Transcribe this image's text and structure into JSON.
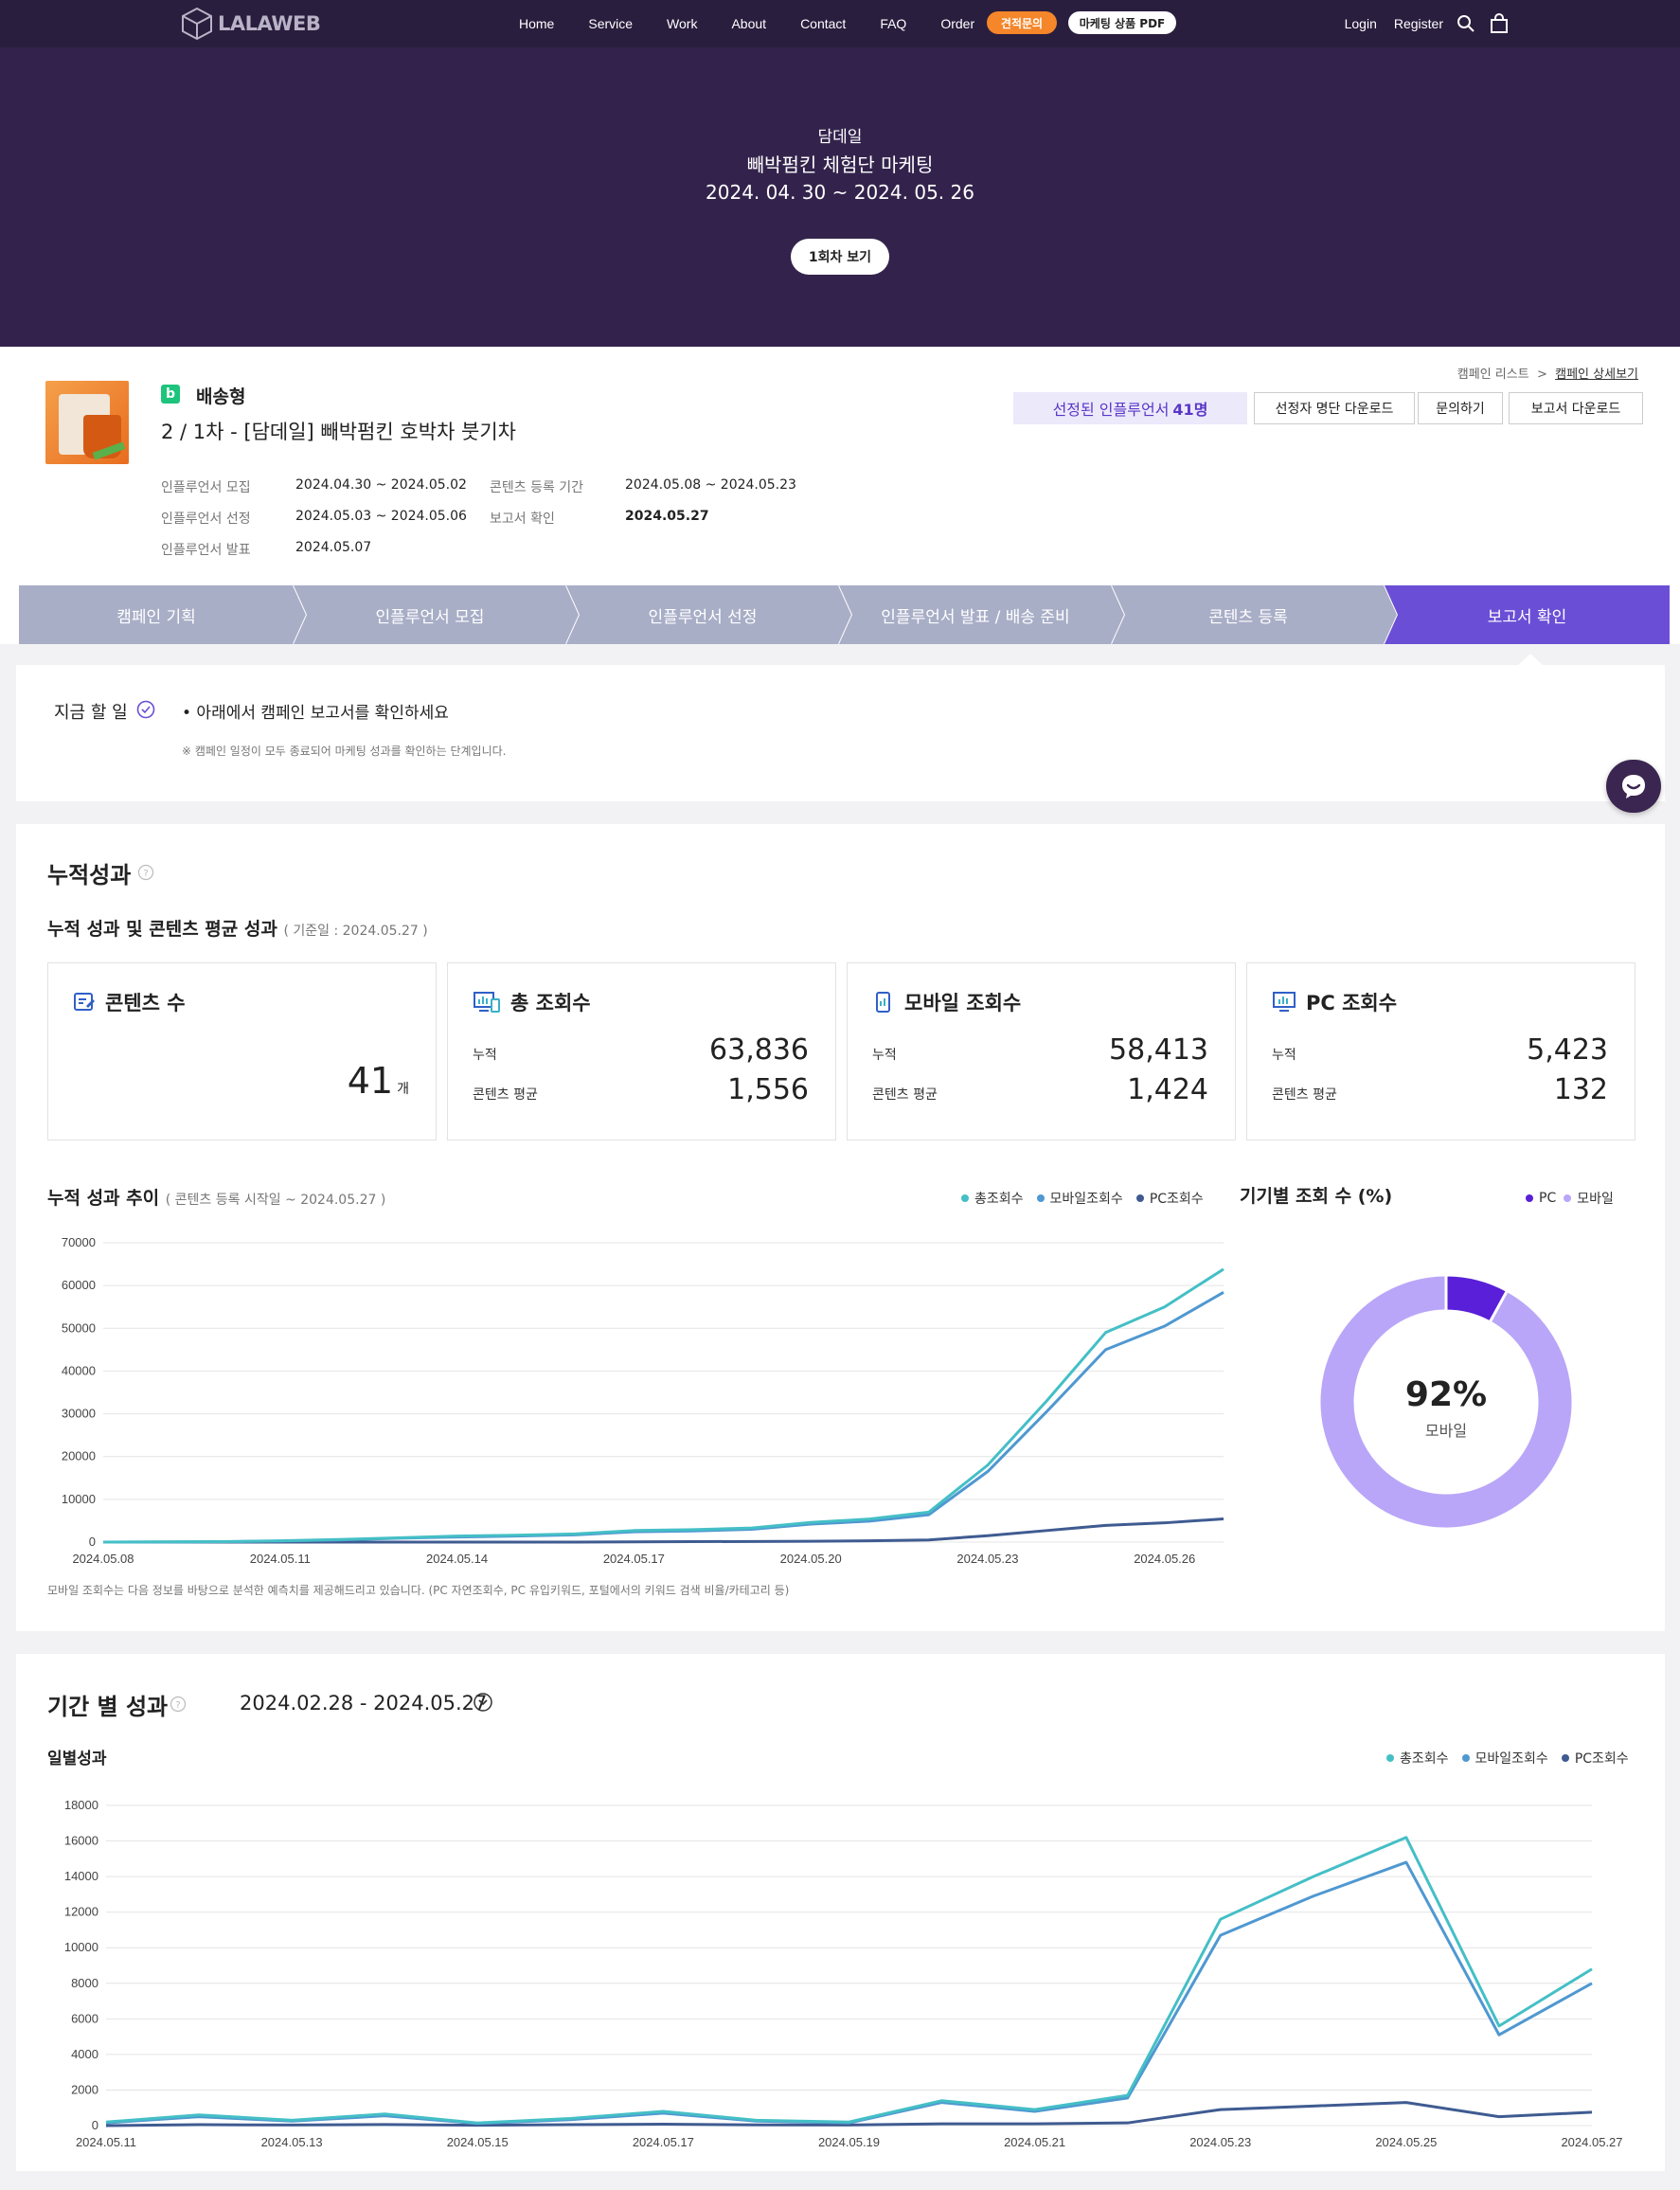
{
  "nav": {
    "logo": "LALAWEB",
    "links": [
      "Home",
      "Service",
      "Work",
      "About",
      "Contact",
      "FAQ",
      "Order"
    ],
    "quote_btn": "견적문의",
    "pdf_btn": "마케팅 상품 PDF",
    "login": "Login",
    "register": "Register"
  },
  "hero": {
    "brand": "담데일",
    "title": "빼박펌킨 체험단 마케팅",
    "dates": "2024. 04. 30 ~ 2024. 05. 26",
    "round_btn": "1회차 보기"
  },
  "campaign": {
    "breadcrumb": [
      "캠페인 리스트",
      "캠페인 상세보기"
    ],
    "breadcrumb_sep": ">",
    "badge": "b",
    "type": "배송형",
    "title": "2 / 1차 - [담데일] 빼박펌킨 호박차 붓기차",
    "selected_label": "선정된 인플루언서",
    "selected_count": "41명",
    "buttons": [
      "선정자 명단 다운로드",
      "문의하기",
      "보고서 다운로드"
    ],
    "meta": [
      {
        "k": "인플루언서 모집",
        "v": "2024.04.30 ~ 2024.05.02"
      },
      {
        "k": "인플루언서 선정",
        "v": "2024.05.03 ~ 2024.05.06"
      },
      {
        "k": "인플루언서 발표",
        "v": "2024.05.07"
      },
      {
        "k": "콘텐츠 등록 기간",
        "v": "2024.05.08 ~ 2024.05.23"
      },
      {
        "k": "보고서 확인",
        "v": "2024.05.27"
      }
    ]
  },
  "steps": {
    "items": [
      "캠페인 기획",
      "인플루언서 모집",
      "인플루언서 선정",
      "인플루언서 발표 / 배송 준비",
      "콘텐츠 등록",
      "보고서 확인"
    ],
    "active_index": 5,
    "color_inactive": "#a9aec7",
    "color_active": "#6a4fd6"
  },
  "todo": {
    "label": "지금 할 일",
    "message": "• 아래에서 캠페인 보고서를 확인하세요",
    "note": "※ 캠페인 일정이 모두 종료되어 마케팅 성과를 확인하는 단계입니다."
  },
  "cumulative": {
    "title": "누적성과",
    "subtitle": "누적 성과 및 콘텐츠 평균 성과",
    "subtitle_date": "( 기준일 : 2024.05.27 )",
    "cards": {
      "contents": {
        "title": "콘텐츠 수",
        "value": "41",
        "unit": "개"
      },
      "total": {
        "title": "총 조회수",
        "cum_label": "누적",
        "cum_value": "63,836",
        "avg_label": "콘텐츠 평균",
        "avg_value": "1,556"
      },
      "mobile": {
        "title": "모바일 조회수",
        "cum_label": "누적",
        "cum_value": "58,413",
        "avg_label": "콘텐츠 평균",
        "avg_value": "1,424"
      },
      "pc": {
        "title": "PC 조회수",
        "cum_label": "누적",
        "cum_value": "5,423",
        "avg_label": "콘텐츠 평균",
        "avg_value": "132"
      }
    },
    "trend_title": "누적 성과 추이",
    "trend_range": "( 콘텐츠 등록 시작일 ~ 2024.05.27 )",
    "device_title": "기기별 조회 수 (%)",
    "legend_trend": [
      "총조회수",
      "모바일조회수",
      "PC조회수"
    ],
    "legend_device": [
      "PC",
      "모바일"
    ],
    "donut_value": "92%",
    "donut_label": "모바일",
    "footnote": "모바일 조회수는 다음 정보를 바탕으로 분석한 예측치를 제공해드리고 있습니다. (PC 자연조회수, PC 유입키워드, 포털에서의 키워드 검색 비율/카테고리 등)"
  },
  "period": {
    "title": "기간 별 성과",
    "range": "2024.02.28 - 2024.05.27",
    "daily_title": "일별성과",
    "legend": [
      "총조회수",
      "모바일조회수",
      "PC조회수"
    ]
  },
  "colors": {
    "total": "#44bfc6",
    "mobile": "#4f98d1",
    "pc": "#3f5b91",
    "donut_pc": "#5a1fd8",
    "donut_mobile": "#b9a6f8",
    "accent_purple": "#6a4fd6"
  },
  "chart_data": [
    {
      "type": "line",
      "x": [
        "2024.05.08",
        "2024.05.09",
        "2024.05.10",
        "2024.05.11",
        "2024.05.12",
        "2024.05.13",
        "2024.05.14",
        "2024.05.15",
        "2024.05.16",
        "2024.05.17",
        "2024.05.18",
        "2024.05.19",
        "2024.05.20",
        "2024.05.21",
        "2024.05.22",
        "2024.05.23",
        "2024.05.24",
        "2024.05.25",
        "2024.05.26",
        "2024.05.27"
      ],
      "x_ticks": [
        "2024.05.08",
        "2024.05.11",
        "2024.05.14",
        "2024.05.17",
        "2024.05.20",
        "2024.05.23",
        "2024.05.26"
      ],
      "ylim": [
        0,
        70000
      ],
      "y_ticks": [
        0,
        10000,
        20000,
        30000,
        40000,
        50000,
        60000,
        70000
      ],
      "grid": true,
      "legend": "top-right",
      "series": [
        {
          "name": "총조회수",
          "values": [
            0,
            50,
            100,
            300,
            600,
            1000,
            1400,
            1600,
            1900,
            2700,
            2900,
            3300,
            4600,
            5400,
            7000,
            18000,
            33000,
            49000,
            55000,
            63836
          ]
        },
        {
          "name": "모바일조회수",
          "values": [
            0,
            40,
            90,
            250,
            500,
            900,
            1200,
            1400,
            1700,
            2400,
            2600,
            3000,
            4200,
            4900,
            6400,
            16500,
            30500,
            45000,
            50500,
            58413
          ]
        },
        {
          "name": "PC조회수",
          "values": [
            0,
            0,
            0,
            0,
            0,
            0,
            0,
            0,
            0,
            50,
            100,
            150,
            200,
            300,
            500,
            1500,
            2700,
            3900,
            4500,
            5423
          ]
        }
      ]
    },
    {
      "type": "pie",
      "categories": [
        "PC",
        "모바일"
      ],
      "values": [
        8,
        92
      ]
    },
    {
      "type": "line",
      "x": [
        "2024.05.11",
        "2024.05.12",
        "2024.05.13",
        "2024.05.14",
        "2024.05.15",
        "2024.05.16",
        "2024.05.17",
        "2024.05.18",
        "2024.05.19",
        "2024.05.20",
        "2024.05.21",
        "2024.05.22",
        "2024.05.23",
        "2024.05.24",
        "2024.05.25",
        "2024.05.26",
        "2024.05.27"
      ],
      "x_ticks": [
        "2024.05.11",
        "2024.05.13",
        "2024.05.15",
        "2024.05.17",
        "2024.05.19",
        "2024.05.21",
        "2024.05.23",
        "2024.05.25",
        "2024.05.27"
      ],
      "ylim": [
        0,
        18000
      ],
      "y_ticks": [
        0,
        2000,
        4000,
        6000,
        8000,
        10000,
        12000,
        14000,
        16000,
        18000
      ],
      "grid": true,
      "legend": "top-right",
      "series": [
        {
          "name": "총조회수",
          "values": [
            200,
            600,
            300,
            650,
            150,
            400,
            800,
            300,
            200,
            1400,
            900,
            1700,
            11600,
            14000,
            16200,
            5600,
            8800
          ]
        },
        {
          "name": "모바일조회수",
          "values": [
            150,
            500,
            250,
            550,
            120,
            330,
            700,
            250,
            150,
            1300,
            800,
            1550,
            10700,
            12900,
            14800,
            5100,
            8000
          ]
        },
        {
          "name": "PC조회수",
          "values": [
            0,
            50,
            30,
            60,
            20,
            50,
            80,
            40,
            30,
            100,
            100,
            150,
            900,
            1100,
            1300,
            500,
            750
          ]
        }
      ]
    }
  ]
}
